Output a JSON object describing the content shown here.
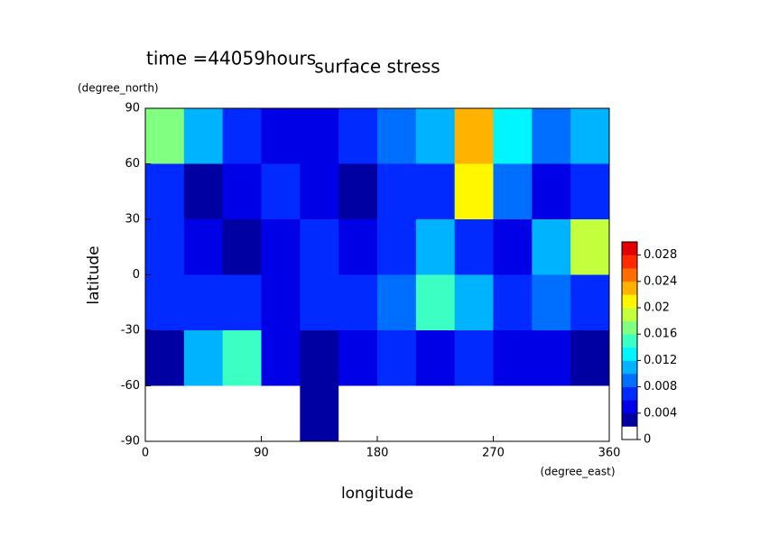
{
  "chart_data": {
    "type": "contour",
    "title": "surface stress",
    "subtitle": "time =44059hours",
    "xlabel": "longitude",
    "xunit": "(degree_east)",
    "ylabel": "latitude",
    "yunit": "(degree_north)",
    "xlim": [
      0,
      360
    ],
    "ylim": [
      -90,
      90
    ],
    "xticks": [
      0,
      90,
      180,
      270,
      360
    ],
    "yticks": [
      90,
      60,
      30,
      0,
      -30,
      -60,
      -90
    ],
    "clim": [
      0,
      0.03
    ],
    "cticks": [
      0,
      0.004,
      0.008,
      0.012,
      0.016,
      0.02,
      0.024,
      0.028
    ],
    "z": [
      [
        0.016,
        0.01,
        0.006,
        0.004,
        0.004,
        0.006,
        0.008,
        0.01,
        0.022,
        0.012,
        0.008,
        0.01
      ],
      [
        0.006,
        0.002,
        0.004,
        0.006,
        0.004,
        0.002,
        0.006,
        0.006,
        0.02,
        0.008,
        0.004,
        0.006
      ],
      [
        0.006,
        0.004,
        0.002,
        0.004,
        0.006,
        0.004,
        0.006,
        0.01,
        0.006,
        0.004,
        0.01,
        0.018
      ],
      [
        0.006,
        0.006,
        0.006,
        0.004,
        0.006,
        0.006,
        0.008,
        0.014,
        0.01,
        0.006,
        0.008,
        0.006
      ],
      [
        0.002,
        0.01,
        0.014,
        0.004,
        0.002,
        0.004,
        0.006,
        0.004,
        0.006,
        0.004,
        0.004,
        0.002
      ],
      [
        0,
        0,
        0,
        0,
        0.002,
        0,
        0,
        0,
        0,
        0,
        0,
        0
      ]
    ]
  }
}
